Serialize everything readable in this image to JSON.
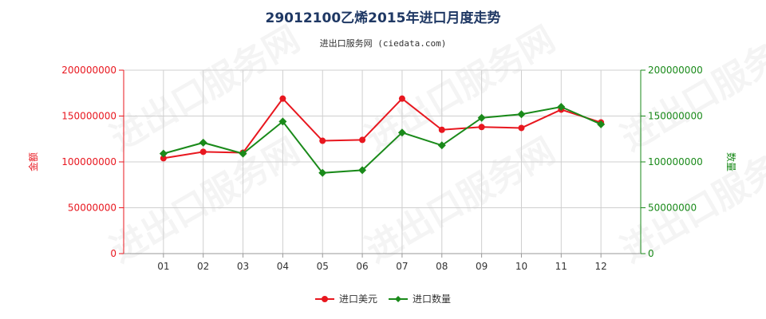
{
  "page": {
    "title": "29012100乙烯2015年进口月度走势",
    "subtitle": "进出口服务网 (ciedata.com)",
    "watermark": "进出口服务网"
  },
  "chart_data": {
    "type": "line",
    "title": "29012100乙烯2015年进口月度走势",
    "subtitle": "进出口服务网 (ciedata.com)",
    "categories": [
      "01",
      "02",
      "03",
      "04",
      "05",
      "06",
      "07",
      "08",
      "09",
      "10",
      "11",
      "12"
    ],
    "ylabel_left": "金额",
    "ylabel_right": "数量",
    "ylim_left": [
      0,
      200000000
    ],
    "ylim_right": [
      0,
      200000000
    ],
    "yticks_left": [
      "0",
      "50000000",
      "100000000",
      "150000000",
      "200000000"
    ],
    "yticks_right": [
      "0",
      "50000000",
      "100000000",
      "150000000",
      "200000000"
    ],
    "grid": true,
    "legend_position": "bottom-center",
    "series": [
      {
        "name": "进口美元",
        "axis": "left",
        "color": "#e8171f",
        "marker": "circle",
        "values": [
          104000000,
          111000000,
          110000000,
          169000000,
          123000000,
          124000000,
          169000000,
          135000000,
          138000000,
          137000000,
          157000000,
          143000000
        ]
      },
      {
        "name": "进口数量",
        "axis": "right",
        "color": "#1a8a1a",
        "marker": "diamond",
        "values": [
          109000000,
          121000000,
          109000000,
          144000000,
          88000000,
          91000000,
          132000000,
          118000000,
          148000000,
          152000000,
          160000000,
          141000000
        ]
      }
    ],
    "colors": {
      "left_axis": "#e8171f",
      "right_axis": "#1a8a1a",
      "grid": "#cfcfcf"
    }
  }
}
